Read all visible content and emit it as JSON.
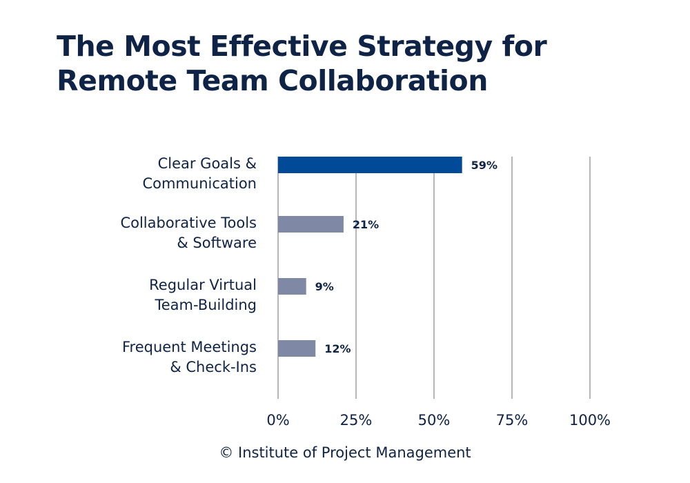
{
  "title": "The Most Effective Strategy for Remote Team Collaboration",
  "source": "© Institute of Project Management",
  "colors": {
    "highlight": "#004a97",
    "bar": "#7f89a6",
    "grid": "#6d6d6d",
    "text": "#0e2346"
  },
  "chart_data": {
    "type": "bar",
    "orientation": "horizontal",
    "title": "The Most Effective Strategy for Remote Team Collaboration",
    "categories": [
      [
        "Clear Goals &",
        "Communication"
      ],
      [
        "Collaborative Tools",
        "& Software"
      ],
      [
        "Regular Virtual",
        "Team-Building"
      ],
      [
        "Frequent Meetings",
        "& Check-Ins"
      ]
    ],
    "values": [
      59,
      21,
      9,
      12
    ],
    "value_labels": [
      "59%",
      "21%",
      "9%",
      "12%"
    ],
    "highlight_index": 0,
    "xlim": [
      0,
      100
    ],
    "xticks": [
      0,
      25,
      50,
      75,
      100
    ],
    "xtick_labels": [
      "0%",
      "25%",
      "50%",
      "75%",
      "100%"
    ],
    "grid": true
  }
}
